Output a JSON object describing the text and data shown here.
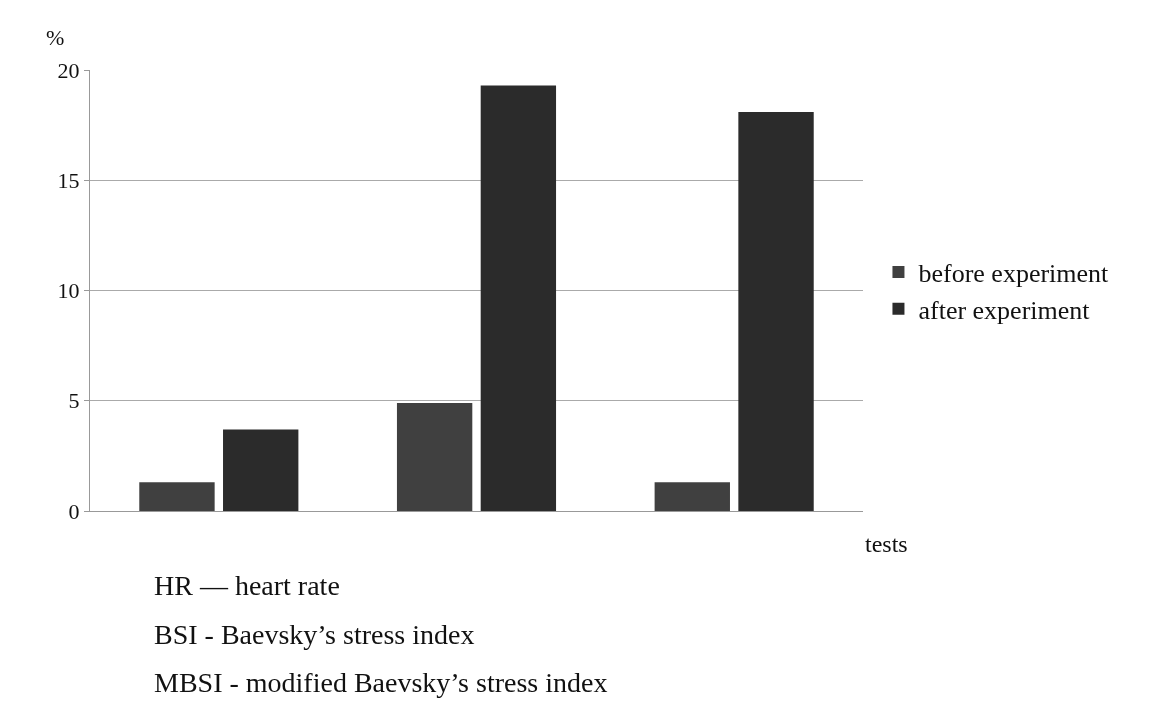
{
  "chart_data": {
    "type": "bar",
    "ylabel": "%",
    "xlabel": "tests",
    "categories": [
      null,
      null,
      null
    ],
    "series": [
      {
        "name": "before experiment",
        "color": "#404040",
        "values": [
          1.3,
          4.9,
          1.3
        ]
      },
      {
        "name": "after experiment",
        "color": "#2b2b2b",
        "values": [
          3.7,
          19.3,
          18.1
        ]
      }
    ],
    "ylim": [
      0,
      20
    ],
    "yticks": [
      0,
      5,
      10,
      15,
      20
    ],
    "grid": "y",
    "legend": "right",
    "annotations": [
      "HR — heart rate",
      "BSI - Baevsky’s stress index",
      "MBSI - modified Baevsky’s stress index"
    ]
  }
}
